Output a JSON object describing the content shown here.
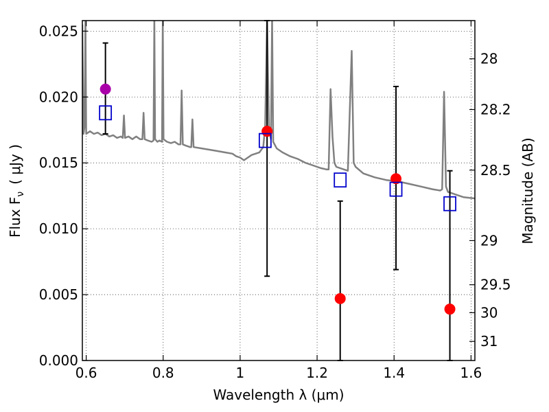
{
  "chart_data": {
    "type": "scatter",
    "xlabel": "Wavelength  λ (μm)",
    "ylabel": "Flux  F",
    "ylabel_sub": "ν",
    "ylabel_unit": "( μJy )",
    "ylabel_right": "Magnitude (AB)",
    "xlim": [
      0.59,
      1.61
    ],
    "ylim": [
      0.0,
      0.0258
    ],
    "grid": true,
    "x_ticks": [
      {
        "value": 0.6,
        "label": "0.6"
      },
      {
        "value": 0.8,
        "label": "0.8"
      },
      {
        "value": 1.0,
        "label": "1"
      },
      {
        "value": 1.2,
        "label": "1.2"
      },
      {
        "value": 1.4,
        "label": "1.4"
      },
      {
        "value": 1.6,
        "label": "1.6"
      }
    ],
    "y_ticks": [
      {
        "value": 0.0,
        "label": "0.000"
      },
      {
        "value": 0.005,
        "label": "0.005"
      },
      {
        "value": 0.01,
        "label": "0.010"
      },
      {
        "value": 0.015,
        "label": "0.015"
      },
      {
        "value": 0.02,
        "label": "0.020"
      },
      {
        "value": 0.025,
        "label": "0.025"
      }
    ],
    "y_right_ticks": [
      {
        "flux": 0.0229,
        "label": "28"
      },
      {
        "flux": 0.01905,
        "label": "28.2"
      },
      {
        "flux": 0.01445,
        "label": "28.5"
      },
      {
        "flux": 0.0091,
        "label": "29"
      },
      {
        "flux": 0.00575,
        "label": "29.5"
      },
      {
        "flux": 0.00363,
        "label": "30"
      },
      {
        "flux": 0.00145,
        "label": "31"
      }
    ],
    "template_spectrum": {
      "color": "#808080",
      "points": [
        [
          0.59,
          0.0255
        ],
        [
          0.593,
          0.0172
        ],
        [
          0.596,
          0.0178
        ],
        [
          0.598,
          0.026
        ],
        [
          0.6,
          0.0172
        ],
        [
          0.61,
          0.0174
        ],
        [
          0.62,
          0.0172
        ],
        [
          0.63,
          0.0173
        ],
        [
          0.64,
          0.0171
        ],
        [
          0.65,
          0.0172
        ],
        [
          0.66,
          0.017
        ],
        [
          0.67,
          0.0171
        ],
        [
          0.68,
          0.0169
        ],
        [
          0.69,
          0.017
        ],
        [
          0.695,
          0.0169
        ],
        [
          0.698,
          0.0186
        ],
        [
          0.701,
          0.0169
        ],
        [
          0.71,
          0.017
        ],
        [
          0.72,
          0.0168
        ],
        [
          0.73,
          0.017
        ],
        [
          0.74,
          0.0168
        ],
        [
          0.746,
          0.0168
        ],
        [
          0.749,
          0.0188
        ],
        [
          0.752,
          0.0168
        ],
        [
          0.76,
          0.0167
        ],
        [
          0.77,
          0.0166
        ],
        [
          0.775,
          0.0167
        ],
        [
          0.777,
          0.026
        ],
        [
          0.779,
          0.0168
        ],
        [
          0.785,
          0.0166
        ],
        [
          0.79,
          0.0167
        ],
        [
          0.797,
          0.0166
        ],
        [
          0.799,
          0.026
        ],
        [
          0.801,
          0.0168
        ],
        [
          0.81,
          0.0166
        ],
        [
          0.82,
          0.0165
        ],
        [
          0.83,
          0.0166
        ],
        [
          0.84,
          0.0164
        ],
        [
          0.845,
          0.0164
        ],
        [
          0.848,
          0.0205
        ],
        [
          0.851,
          0.0164
        ],
        [
          0.86,
          0.0163
        ],
        [
          0.87,
          0.0162
        ],
        [
          0.873,
          0.0162
        ],
        [
          0.876,
          0.0183
        ],
        [
          0.879,
          0.0162
        ],
        [
          0.9,
          0.0161
        ],
        [
          0.92,
          0.016
        ],
        [
          0.94,
          0.0159
        ],
        [
          0.96,
          0.0158
        ],
        [
          0.98,
          0.0157
        ],
        [
          0.99,
          0.0155
        ],
        [
          1.0,
          0.0154
        ],
        [
          1.01,
          0.0152
        ],
        [
          1.02,
          0.0154
        ],
        [
          1.03,
          0.0156
        ],
        [
          1.04,
          0.0157
        ],
        [
          1.05,
          0.0158
        ],
        [
          1.06,
          0.0162
        ],
        [
          1.065,
          0.0178
        ],
        [
          1.07,
          0.026
        ],
        [
          1.075,
          0.0175
        ],
        [
          1.08,
          0.0168
        ],
        [
          1.083,
          0.026
        ],
        [
          1.086,
          0.0166
        ],
        [
          1.095,
          0.0161
        ],
        [
          1.11,
          0.0158
        ],
        [
          1.13,
          0.0155
        ],
        [
          1.15,
          0.0153
        ],
        [
          1.17,
          0.015
        ],
        [
          1.19,
          0.0148
        ],
        [
          1.21,
          0.0146
        ],
        [
          1.225,
          0.0145
        ],
        [
          1.23,
          0.0145
        ],
        [
          1.235,
          0.0206
        ],
        [
          1.24,
          0.017
        ],
        [
          1.245,
          0.015
        ],
        [
          1.25,
          0.0147
        ],
        [
          1.27,
          0.0145
        ],
        [
          1.28,
          0.0144
        ],
        [
          1.29,
          0.0235
        ],
        [
          1.295,
          0.015
        ],
        [
          1.3,
          0.0147
        ],
        [
          1.32,
          0.0142
        ],
        [
          1.35,
          0.0139
        ],
        [
          1.38,
          0.0137
        ],
        [
          1.41,
          0.0136
        ],
        [
          1.44,
          0.0134
        ],
        [
          1.47,
          0.0132
        ],
        [
          1.5,
          0.013
        ],
        [
          1.52,
          0.0129
        ],
        [
          1.525,
          0.013
        ],
        [
          1.53,
          0.0204
        ],
        [
          1.535,
          0.0132
        ],
        [
          1.54,
          0.0128
        ],
        [
          1.56,
          0.0126
        ],
        [
          1.58,
          0.0124
        ],
        [
          1.61,
          0.0123
        ]
      ]
    },
    "series": [
      {
        "marker": "circle",
        "color": "#aa00aa",
        "points": [
          {
            "x": 0.65,
            "y": 0.0206,
            "err_lo": 0.0172,
            "err_hi": 0.0241
          }
        ]
      },
      {
        "marker": "circle",
        "color": "#ff0000",
        "points": [
          {
            "x": 1.07,
            "y": 0.0174,
            "err_lo": 0.0064,
            "err_hi": 0.0258
          },
          {
            "x": 1.26,
            "y": 0.0047,
            "err_lo": 0.0,
            "err_hi": 0.0121
          },
          {
            "x": 1.405,
            "y": 0.0138,
            "err_lo": 0.0069,
            "err_hi": 0.0208
          },
          {
            "x": 1.545,
            "y": 0.0039,
            "err_lo": 0.0,
            "err_hi": 0.0144
          }
        ]
      },
      {
        "marker": "square",
        "color": "#0000cc",
        "points": [
          {
            "x": 0.65,
            "y": 0.0188
          },
          {
            "x": 1.065,
            "y": 0.0167
          },
          {
            "x": 1.26,
            "y": 0.0137
          },
          {
            "x": 1.405,
            "y": 0.013
          },
          {
            "x": 1.545,
            "y": 0.0119
          }
        ]
      }
    ]
  }
}
